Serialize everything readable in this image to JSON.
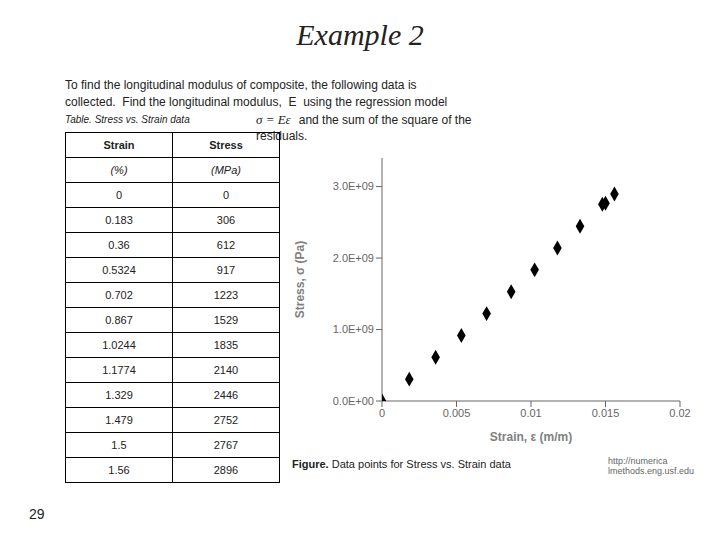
{
  "chart_data": {
    "type": "scatter",
    "title": "Example 2",
    "annotations": [
      "To find the longitudinal modulus of composite, the following data is",
      "collected.  Find the longitudinal modulus,  E  using the regression model",
      "σ = Eε",
      "and the sum of the square of the",
      "residuals."
    ],
    "table": {
      "title": "Table. Stress vs. Strain data",
      "headers": [
        "Strain",
        "Stress"
      ],
      "units": [
        "(%)",
        "(MPa)"
      ],
      "strain": [
        0,
        0.183,
        0.36,
        0.5324,
        0.702,
        0.867,
        1.0244,
        1.1774,
        1.329,
        1.479,
        1.5,
        1.56
      ],
      "stress": [
        0,
        306,
        612,
        917,
        1223,
        1529,
        1835,
        2140,
        2446,
        2752,
        2767,
        2896
      ]
    },
    "x": [
      0,
      0.00183,
      0.0036,
      0.005324,
      0.00702,
      0.00867,
      0.010244,
      0.011774,
      0.01329,
      0.01479,
      0.015,
      0.0156
    ],
    "values": [
      0,
      306000000,
      612000000,
      917000000,
      1223000000,
      1529000000,
      1835000000,
      2140000000,
      2446000000,
      2752000000,
      2767000000,
      2896000000
    ],
    "marker": "diamond",
    "xlabel": "Strain, ε (m/m)",
    "ylabel": "Stress, σ (Pa)",
    "xlim": [
      0,
      0.02
    ],
    "ylim": [
      0,
      3400000000
    ],
    "xticks": [
      0,
      0.005,
      0.01,
      0.015,
      0.02
    ],
    "yticks": [
      {
        "value": 0,
        "label": "0.0E+00"
      },
      {
        "value": 1000000000,
        "label": "1.0E+09"
      },
      {
        "value": 2000000000,
        "label": "2.0E+09"
      },
      {
        "value": 3000000000,
        "label": "3.0E+09"
      }
    ],
    "caption_bold": "Figure.",
    "caption_rest": " Data points for Stress vs. Strain data",
    "urls": [
      "http://numerica",
      "lmethods.eng.usf.edu"
    ],
    "slide_number": "29",
    "grid": false
  }
}
